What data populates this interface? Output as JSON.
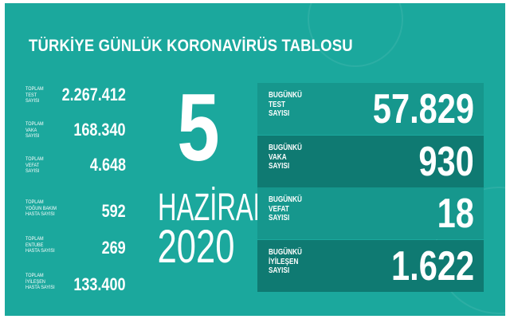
{
  "title": "TÜRKİYE GÜNLÜK KORONAVİRÜS TABLOSU",
  "totals": [
    {
      "label": [
        "TOPLAM",
        "TEST",
        "SAYISI"
      ],
      "value": "2.267.412"
    },
    {
      "label": [
        "TOPLAM",
        "VAKA",
        "SAYISI"
      ],
      "value": "168.340"
    },
    {
      "label": [
        "TOPLAM",
        "VEFAT",
        "SAYISI"
      ],
      "value": "4.648"
    },
    {
      "label": [
        "TOPLAM",
        "YOĞUN BAKIM",
        "HASTA SAYISI"
      ],
      "value": "592"
    },
    {
      "label": [
        "TOPLAM",
        "ENTUBE",
        "HASTA SAYISI"
      ],
      "value": "269"
    },
    {
      "label": [
        "TOPLAM",
        "İYİLEŞEN",
        "HASTA SAYISI"
      ],
      "value": "133.400"
    }
  ],
  "date": {
    "day": "5",
    "month": "HAZİRAN",
    "year": "2020"
  },
  "today": [
    {
      "label": [
        "BUGÜNKÜ",
        "TEST",
        "SAYISI"
      ],
      "value": "57.829"
    },
    {
      "label": [
        "BUGÜNKÜ",
        "VAKA",
        "SAYISI"
      ],
      "value": "930"
    },
    {
      "label": [
        "BUGÜNKÜ",
        "VEFAT",
        "SAYISI"
      ],
      "value": "18"
    },
    {
      "label": [
        "BUGÜNKÜ",
        "İYİLEŞEN",
        "SAYISI"
      ],
      "value": "1.622"
    }
  ],
  "colors": {
    "background": "#1ba89d",
    "box_light": "#16978d",
    "box_dark": "#0f7a72"
  }
}
